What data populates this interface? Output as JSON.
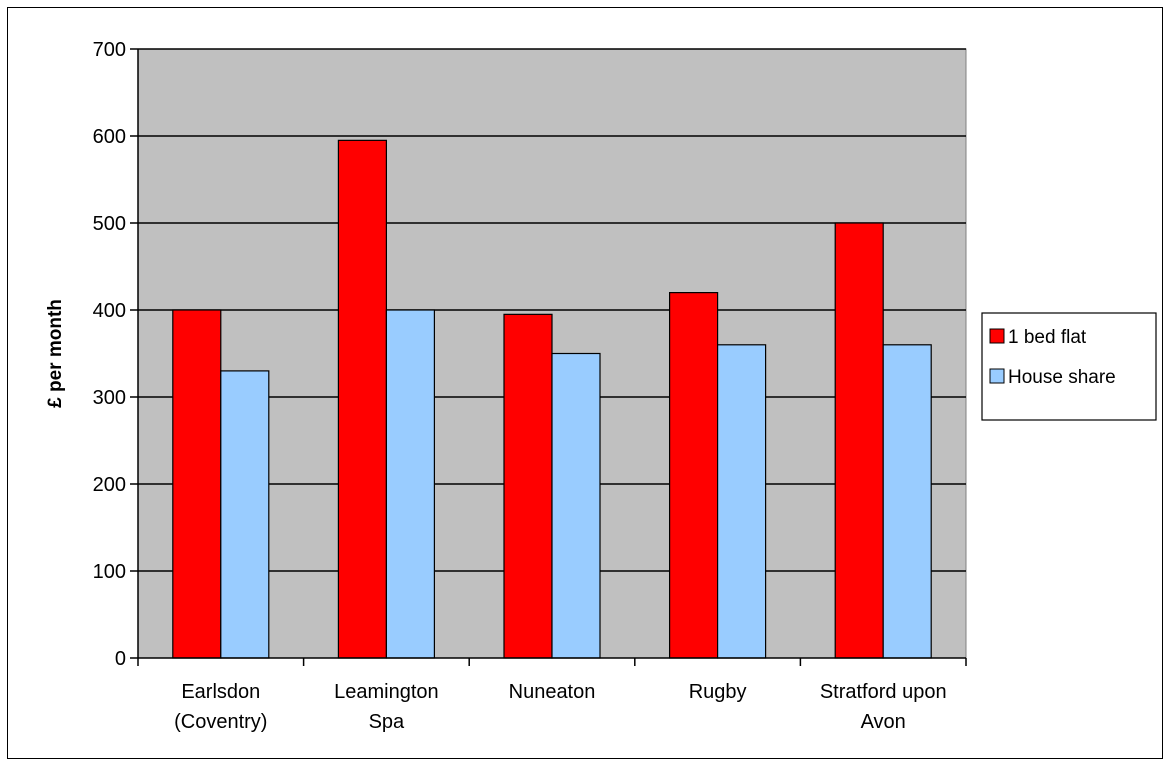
{
  "chart_data": {
    "type": "bar",
    "title": "",
    "xlabel": "",
    "ylabel": "£ per month",
    "ylim": [
      0,
      700
    ],
    "yticks": [
      0,
      100,
      200,
      300,
      400,
      500,
      600,
      700
    ],
    "grid": true,
    "legend_position": "right",
    "categories": [
      [
        "Earlsdon",
        "(Coventry)"
      ],
      [
        "Leamington",
        "Spa"
      ],
      [
        "Nuneaton"
      ],
      [
        "Rugby"
      ],
      [
        "Stratford upon",
        "Avon"
      ]
    ],
    "series": [
      {
        "name": "1 bed flat",
        "color": "#ff0000",
        "values": [
          400,
          595,
          395,
          420,
          500
        ]
      },
      {
        "name": "House share",
        "color": "#99ccff",
        "values": [
          330,
          400,
          350,
          360,
          360
        ]
      }
    ],
    "plot_background": "#c0c0c0"
  }
}
